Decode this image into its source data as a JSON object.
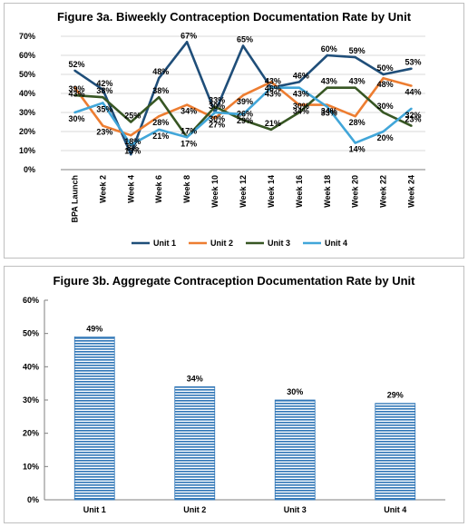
{
  "chart_data": [
    {
      "type": "line",
      "title": "Figure 3a. Biweekly Contraception Documentation Rate by Unit",
      "categories": [
        "BPA Launch",
        "Week 2",
        "Week 4",
        "Week 6",
        "Week 8",
        "Week 10",
        "Week 12",
        "Week 14",
        "Week 16",
        "Week 18",
        "Week 20",
        "Week 22",
        "Week 24"
      ],
      "ylim": [
        0,
        70
      ],
      "yticks": [
        "0%",
        "10%",
        "20%",
        "30%",
        "40%",
        "50%",
        "60%",
        "70%"
      ],
      "legend_position": "bottom",
      "series": [
        {
          "name": "Unit 1",
          "color": "#1f4e79",
          "values": [
            52,
            42,
            8,
            48,
            67,
            30,
            65,
            43,
            46,
            60,
            59,
            50,
            53
          ],
          "labels": [
            "52%",
            "42%",
            "8%",
            "48%",
            "67%",
            "30%",
            "65%",
            "43%",
            "46%",
            "60%",
            "59%",
            "50%",
            "53%"
          ]
        },
        {
          "name": "Unit 2",
          "color": "#ed7d31",
          "values": [
            43,
            23,
            18,
            28,
            34,
            27,
            39,
            46,
            34,
            34,
            28,
            48,
            44
          ],
          "labels": [
            "43%",
            "23%",
            "18%",
            "28%",
            "34%",
            "27%",
            "39%",
            "46%",
            "34%",
            "34%",
            "28%",
            "48%",
            "44%"
          ]
        },
        {
          "name": "Unit 3",
          "color": "#375623",
          "values": [
            39,
            38,
            25,
            38,
            17,
            33,
            26,
            21,
            30,
            43,
            43,
            30,
            23
          ],
          "labels": [
            "39%",
            "38%",
            "25%",
            "38%",
            "17%",
            "33%",
            "26%",
            "21%",
            "30%",
            "43%",
            "43%",
            "30%",
            "23%"
          ]
        },
        {
          "name": "Unit 4",
          "color": "#41a6d9",
          "values": [
            30,
            35,
            13,
            21,
            17,
            30,
            29,
            43,
            43,
            33,
            14,
            20,
            32
          ],
          "labels": [
            "30%",
            "35%",
            "13%",
            "21%",
            "17%",
            "30%",
            "29%",
            "43%",
            "43%",
            "33%",
            "14%",
            "20%",
            "32%"
          ]
        }
      ]
    },
    {
      "type": "bar",
      "title": "Figure 3b. Aggregate Contraception Documentation Rate by Unit",
      "categories": [
        "Unit 1",
        "Unit 2",
        "Unit 3",
        "Unit 4"
      ],
      "values": [
        49,
        34,
        30,
        29
      ],
      "labels": [
        "49%",
        "34%",
        "30%",
        "29%"
      ],
      "ylim": [
        0,
        60
      ],
      "yticks": [
        "0%",
        "10%",
        "20%",
        "30%",
        "40%",
        "50%",
        "60%"
      ],
      "color": "#2e75b6"
    }
  ]
}
